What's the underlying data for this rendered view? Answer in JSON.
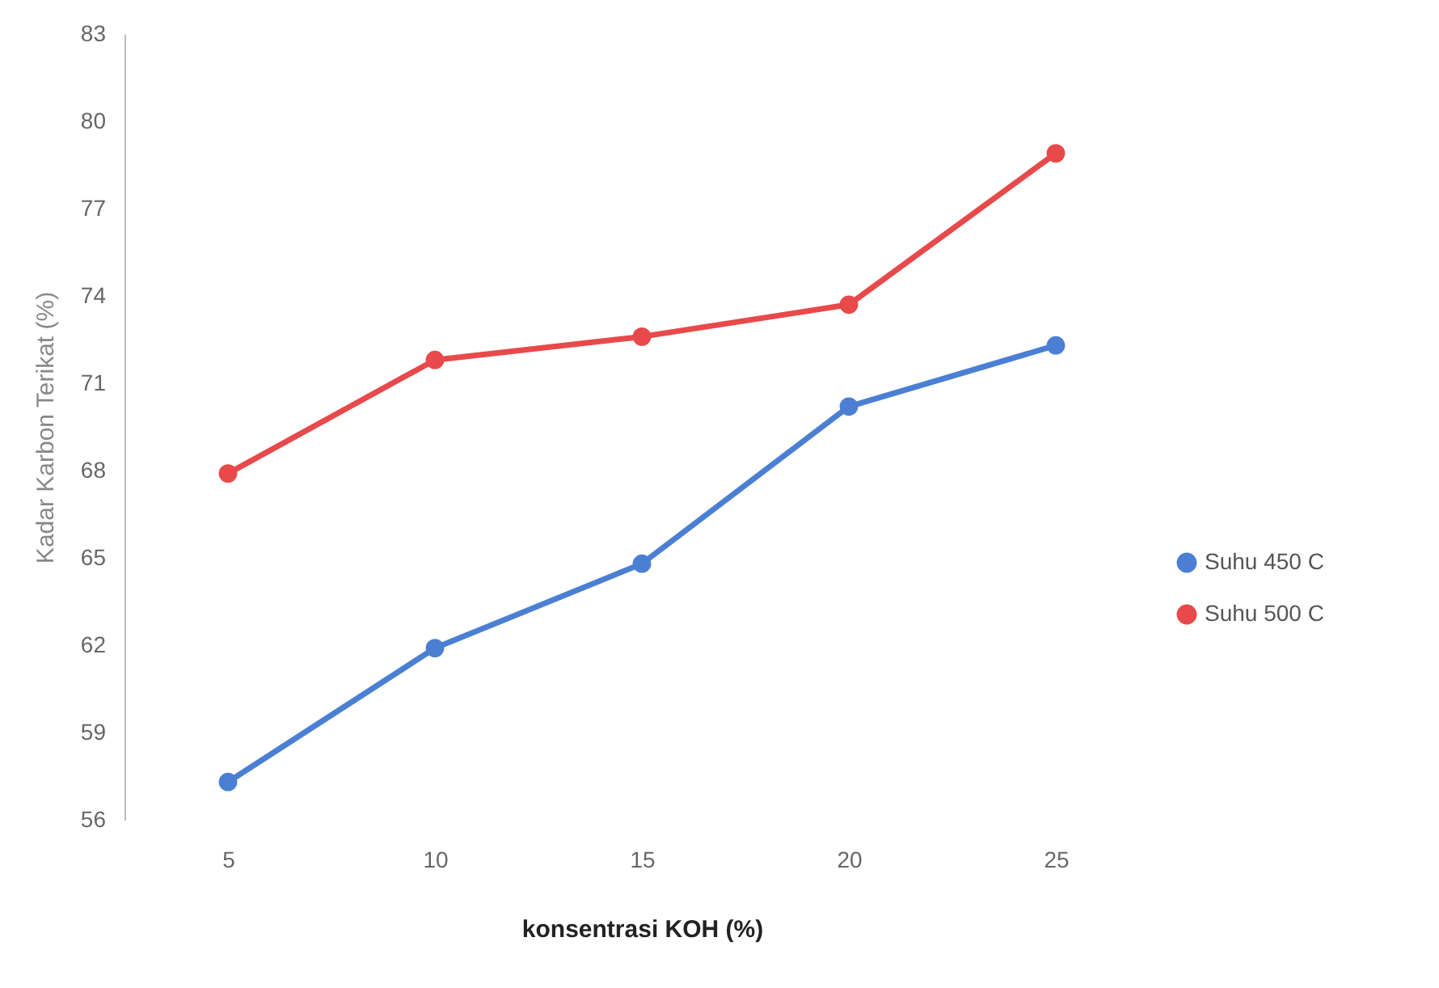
{
  "chart_data": {
    "type": "line",
    "xlabel": "konsentrasi KOH (%)",
    "ylabel": "Kadar Karbon Terikat (%)",
    "categories": [
      "5",
      "10",
      "15",
      "20",
      "25"
    ],
    "series": [
      {
        "name": "Suhu 450 C",
        "color": "#4a7fd4",
        "values": [
          57.3,
          61.9,
          64.8,
          70.2,
          72.3
        ]
      },
      {
        "name": "Suhu 500 C",
        "color": "#e8494a",
        "values": [
          67.9,
          71.8,
          72.6,
          73.7,
          78.9
        ]
      }
    ],
    "ylim": [
      56,
      83
    ],
    "yticks": [
      56,
      59,
      62,
      65,
      68,
      71,
      74,
      77,
      80,
      83
    ],
    "grid": false,
    "legend": "right",
    "marker": "circle",
    "line_style": "solid"
  }
}
